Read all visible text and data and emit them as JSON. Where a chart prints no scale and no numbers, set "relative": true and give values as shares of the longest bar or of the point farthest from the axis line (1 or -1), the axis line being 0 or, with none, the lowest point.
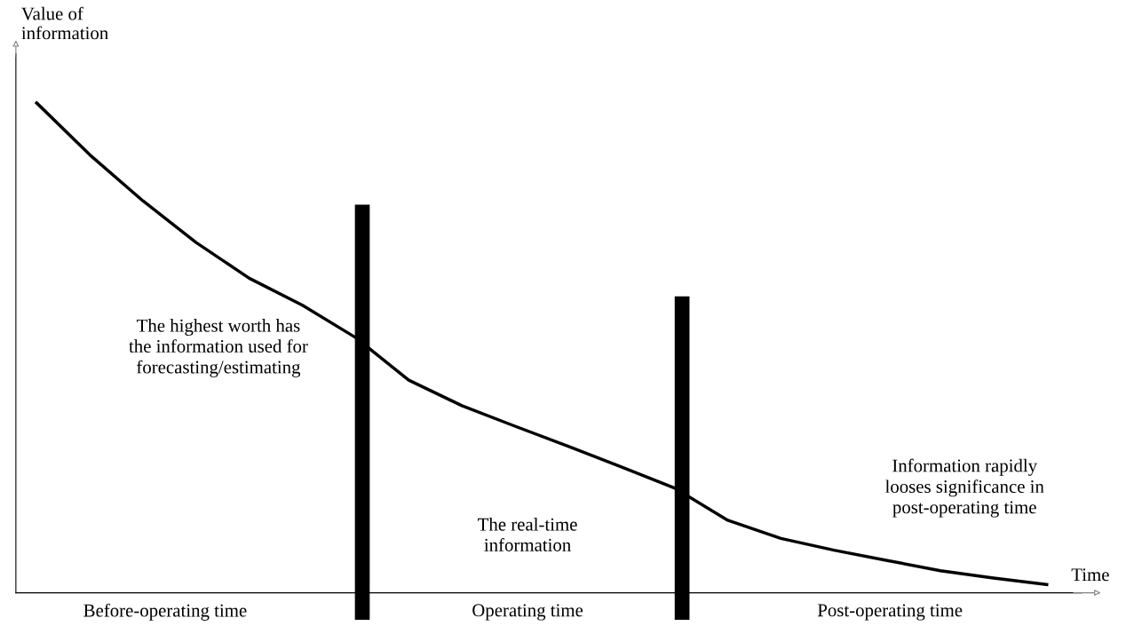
{
  "chart_data": {
    "type": "line",
    "relative": true,
    "ylabel": "Value of\ninformation",
    "xlabel": "Time",
    "categories": [
      null,
      null,
      null,
      null,
      null,
      null,
      null,
      null,
      null,
      null,
      null,
      null,
      null,
      null,
      null,
      null,
      null,
      null,
      null,
      null
    ],
    "series": [
      {
        "color": "#000000",
        "values": [
          1.0,
          0.894,
          0.8,
          0.715,
          0.642,
          0.587,
          0.521,
          0.434,
          0.382,
          0.34,
          0.299,
          0.257,
          0.214,
          0.148,
          0.111,
          0.087,
          0.066,
          0.045,
          0.03,
          0.017
        ]
      }
    ],
    "annotations": [
      "The highest worth has\nthe information used for\nforecasting/estimating",
      "The real-time\ninformation",
      "Information rapidly\nlooses significance in\npost-operating time",
      "Before-operating time",
      "Operating time",
      "Post-operating time"
    ],
    "grid": false,
    "legend": false,
    "marker": "none",
    "line_style": "solid"
  }
}
